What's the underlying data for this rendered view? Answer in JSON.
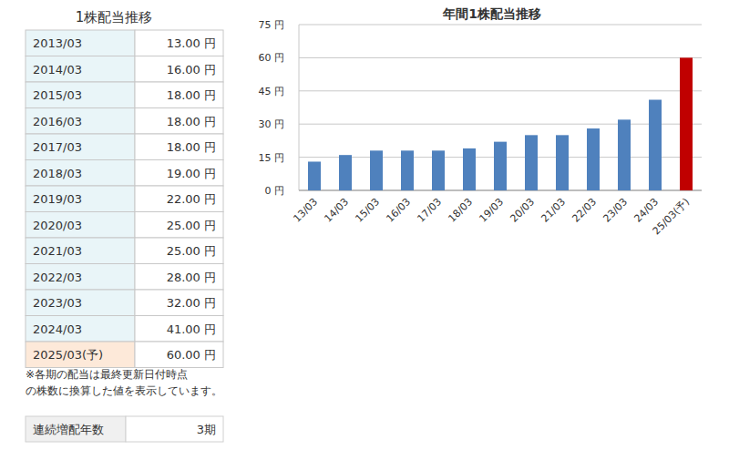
{
  "table": {
    "title": "1株配当推移",
    "rows": [
      [
        "2013/03",
        "13.00 円"
      ],
      [
        "2014/03",
        "16.00 円"
      ],
      [
        "2015/03",
        "18.00 円"
      ],
      [
        "2016/03",
        "18.00 円"
      ],
      [
        "2017/03",
        "18.00 円"
      ],
      [
        "2018/03",
        "19.00 円"
      ],
      [
        "2019/03",
        "22.00 円"
      ],
      [
        "2020/03",
        "25.00 円"
      ],
      [
        "2021/03",
        "25.00 円"
      ],
      [
        "2022/03",
        "28.00 円"
      ],
      [
        "2023/03",
        "32.00 円"
      ],
      [
        "2024/03",
        "41.00 円"
      ],
      [
        "2025/03(予)",
        "60.00 円"
      ]
    ]
  },
  "note": [
    "※各期の配当は最終更新日付時点",
    "の株数に換算した値を表示しています。"
  ],
  "summary": {
    "label": "連続増配年数",
    "value": "3期"
  },
  "chart_data": {
    "type": "bar",
    "title": "年間1株配当推移",
    "categories": [
      "13/03",
      "14/03",
      "15/03",
      "16/03",
      "17/03",
      "18/03",
      "19/03",
      "20/03",
      "21/03",
      "22/03",
      "23/03",
      "24/03",
      "25/03(予)"
    ],
    "values": [
      13,
      16,
      18,
      18,
      18,
      19,
      22,
      25,
      25,
      28,
      32,
      41,
      60
    ],
    "colors": [
      "#4f81bd",
      "#4f81bd",
      "#4f81bd",
      "#4f81bd",
      "#4f81bd",
      "#4f81bd",
      "#4f81bd",
      "#4f81bd",
      "#4f81bd",
      "#4f81bd",
      "#4f81bd",
      "#4f81bd",
      "#c00000"
    ],
    "ylim": [
      0,
      75
    ],
    "yticks": [
      {
        "value": 0,
        "label": "0 円"
      },
      {
        "value": 15,
        "label": "15 円"
      },
      {
        "value": 30,
        "label": "30 円"
      },
      {
        "value": 45,
        "label": "45 円"
      },
      {
        "value": 60,
        "label": "60 円"
      },
      {
        "value": 75,
        "label": "75 円"
      }
    ],
    "grid": true
  }
}
